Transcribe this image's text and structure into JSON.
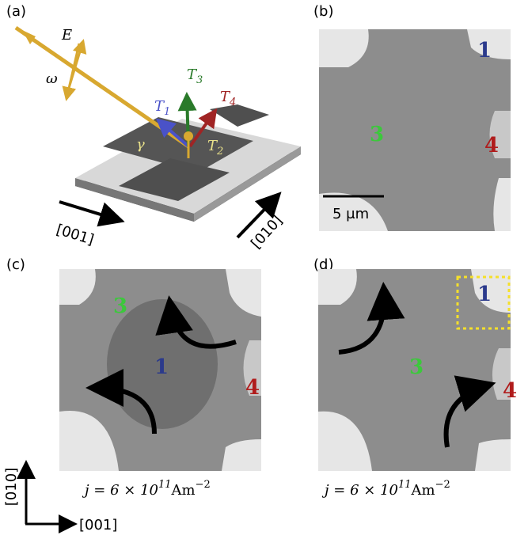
{
  "panels": {
    "a": {
      "label": "(a)",
      "field": "E",
      "angle": "ω",
      "gamma": "γ",
      "torques": [
        {
          "symbol": "T",
          "sub": "1"
        },
        {
          "symbol": "T",
          "sub": "3"
        },
        {
          "symbol": "T",
          "sub": "4"
        },
        {
          "symbol": "T",
          "sub": "2"
        }
      ],
      "axis_horizontal": "[001]",
      "axis_vertical": "[010]"
    },
    "b": {
      "label": "(b)",
      "domains": [
        "1",
        "3",
        "4"
      ],
      "scale_bar": "5 μm"
    },
    "c": {
      "label": "(c)",
      "domains": [
        "3",
        "1",
        "4"
      ],
      "current": {
        "text": "j = 6 × 10",
        "exp": "11",
        "unit": "Am",
        "unit_exp": "−2"
      }
    },
    "d": {
      "label": "(d)",
      "domains": [
        "1",
        "3",
        "4"
      ],
      "current": {
        "text": "j = 6 × 10",
        "exp": "11",
        "unit": "Am",
        "unit_exp": "−2"
      }
    }
  },
  "axes": {
    "vertical": "[010]",
    "horizontal": "[001]"
  }
}
